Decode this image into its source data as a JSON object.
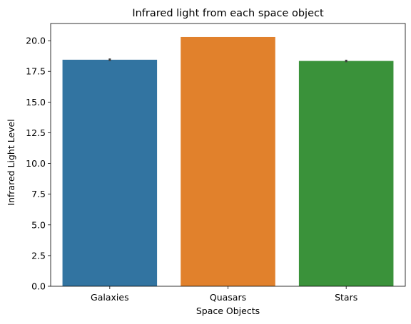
{
  "chart_data": {
    "type": "bar",
    "title": "Infrared light from each space object",
    "xlabel": "Space Objects",
    "ylabel": "Infrared Light Level",
    "categories": [
      "Galaxies",
      "Quasars",
      "Stars"
    ],
    "values": [
      18.45,
      20.3,
      18.35
    ],
    "error_bars": [
      [
        18.35,
        18.55
      ],
      null,
      [
        18.25,
        18.45
      ]
    ],
    "colors": [
      "#3274a1",
      "#e1812c",
      "#3a923a"
    ],
    "ylim": [
      0,
      21.4
    ],
    "yticks": [
      0.0,
      2.5,
      5.0,
      7.5,
      10.0,
      12.5,
      15.0,
      17.5,
      20.0
    ],
    "ytick_labels": [
      "0.0",
      "2.5",
      "5.0",
      "7.5",
      "10.0",
      "12.5",
      "15.0",
      "17.5",
      "20.0"
    ],
    "grid": false
  }
}
